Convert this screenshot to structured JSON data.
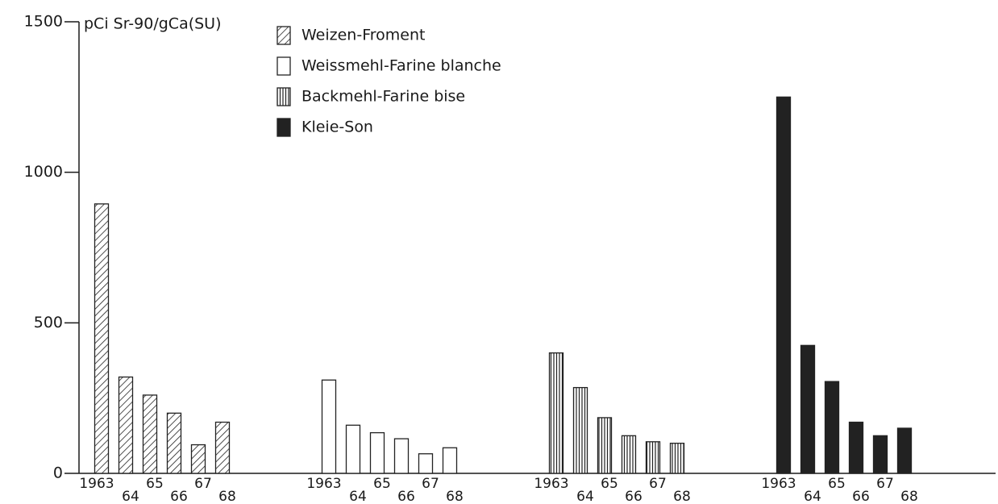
{
  "chart_data": {
    "type": "bar",
    "y_label": "pCi Sr-90/gCa(SU)",
    "categories": [
      "1963",
      "64",
      "65",
      "66",
      "67",
      "68"
    ],
    "series": [
      {
        "name": "Weizen-Froment",
        "color": "#222222",
        "pattern": "diagonal",
        "values": [
          895,
          320,
          260,
          200,
          95,
          170
        ]
      },
      {
        "name": "Weissmehl-Farine blanche",
        "color": "#222222",
        "pattern": "none",
        "values": [
          310,
          160,
          135,
          115,
          65,
          85
        ]
      },
      {
        "name": "Backmehl-Farine bise",
        "color": "#222222",
        "pattern": "vertical",
        "values": [
          400,
          285,
          185,
          125,
          105,
          100
        ]
      },
      {
        "name": "Kleie-Son",
        "color": "#222222",
        "pattern": "solid",
        "values": [
          1250,
          425,
          305,
          170,
          125,
          150
        ]
      }
    ],
    "ylim": [
      0,
      1500
    ],
    "yticks": [
      0,
      500,
      1000,
      1500
    ],
    "grid": false
  }
}
